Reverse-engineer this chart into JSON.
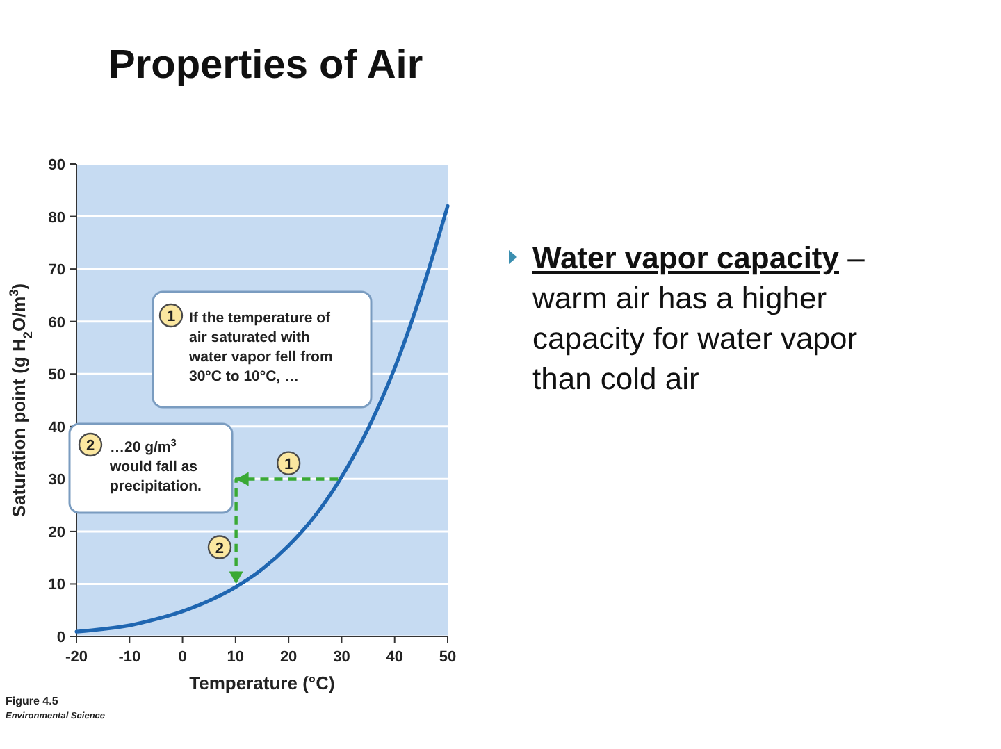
{
  "chart_data": {
    "type": "line",
    "title": "Properties of Air",
    "xlabel": "Temperature (°C)",
    "ylabel": "Saturation point (g H$_{2}$O/m$^{3}$)",
    "x": [
      -20,
      -15,
      -10,
      -5,
      0,
      5,
      10,
      15,
      20,
      25,
      30,
      35,
      40,
      45,
      50
    ],
    "series": [
      {
        "color": "#1f66b1",
        "values": [
          0.9,
          1.4,
          2.1,
          3.3,
          4.8,
          6.8,
          9.4,
          12.8,
          17.3,
          23.0,
          30.4,
          39.6,
          51.1,
          65.4,
          82
        ]
      }
    ],
    "xlim": [
      -20,
      50
    ],
    "xticks": [
      -20,
      -10,
      0,
      10,
      20,
      30,
      40,
      50
    ],
    "ylim": [
      0,
      90
    ],
    "yticks": [
      0,
      10,
      20,
      30,
      40,
      50,
      60,
      70,
      80,
      90
    ],
    "grid": "y",
    "marker": "none",
    "annotations": [
      "If the temperature of air saturated with water vapor fell from 30°C to 10°C, …",
      "…20 g/m$^{3}$ would fall as precipitation.",
      {
        "text": "1",
        "x": 20,
        "y": 33
      },
      {
        "text": "2",
        "x": 7,
        "y": 17
      },
      "Water vapor capacity",
      "– warm air has a higher capacity for water vapor than cold air",
      "Figure 4.5",
      "Environmental Science"
    ]
  }
}
